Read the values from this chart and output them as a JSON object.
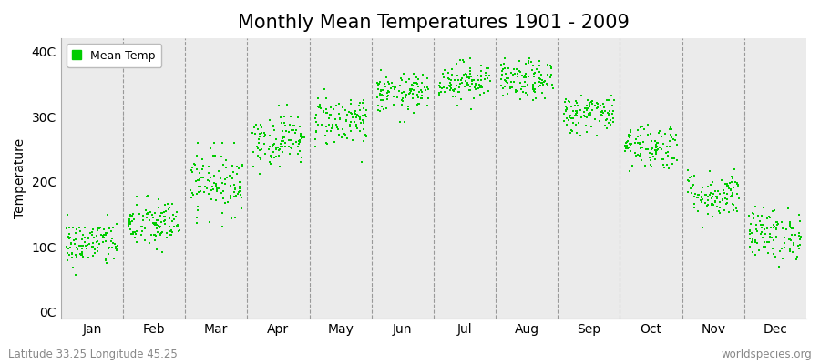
{
  "title": "Monthly Mean Temperatures 1901 - 2009",
  "ylabel": "Temperature",
  "subtitle_left": "Latitude 33.25 Longitude 45.25",
  "subtitle_right": "worldspecies.org",
  "ytick_labels": [
    "0C",
    "10C",
    "20C",
    "30C",
    "40C"
  ],
  "ytick_values": [
    0,
    10,
    20,
    30,
    40
  ],
  "ylim": [
    -1,
    42
  ],
  "legend_label": "Mean Temp",
  "dot_color": "#00cc00",
  "dot_size": 3,
  "background_color": "#ffffff",
  "plot_bg_color": "#ebebeb",
  "months": [
    "Jan",
    "Feb",
    "Mar",
    "Apr",
    "May",
    "Jun",
    "Jul",
    "Aug",
    "Sep",
    "Oct",
    "Nov",
    "Dec"
  ],
  "monthly_means": [
    10.5,
    13.5,
    20.0,
    26.5,
    29.5,
    33.5,
    35.5,
    35.5,
    30.5,
    25.5,
    18.0,
    12.0
  ],
  "monthly_stds": [
    1.8,
    2.0,
    2.5,
    2.0,
    2.0,
    1.5,
    1.5,
    1.5,
    1.5,
    1.8,
    1.8,
    2.0
  ],
  "monthly_mins": [
    4.0,
    7.0,
    13.0,
    20.0,
    23.0,
    29.0,
    30.0,
    30.0,
    26.0,
    20.0,
    13.0,
    7.0
  ],
  "monthly_maxs": [
    15.0,
    19.0,
    26.0,
    32.0,
    36.0,
    37.5,
    39.0,
    39.0,
    34.0,
    32.5,
    22.0,
    17.5
  ],
  "n_years": 109,
  "dashed_line_color": "#999999",
  "title_fontsize": 15,
  "axis_label_fontsize": 10,
  "tick_fontsize": 10,
  "legend_fontsize": 9,
  "subtitle_fontsize": 8.5
}
